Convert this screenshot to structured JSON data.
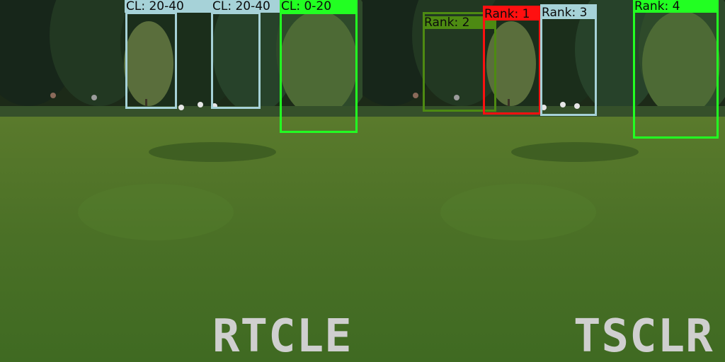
{
  "panels": [
    {
      "method_label": "RTCLE",
      "detections": [
        {
          "label": "CL: 20-40",
          "color": "#a6d2d8"
        },
        {
          "label": "CL: 20-40",
          "color": "#a6d2d8"
        },
        {
          "label": "CL: 0-20",
          "color": "#22ff22"
        }
      ]
    },
    {
      "method_label": "TSCLR",
      "detections": [
        {
          "label": "Rank: 2",
          "color": "#4d8a12"
        },
        {
          "label": "Rank: 1",
          "color": "#ff1010"
        },
        {
          "label": "Rank: 3",
          "color": "#a6d2d8"
        },
        {
          "label": "Rank: 4",
          "color": "#22ff22"
        }
      ]
    }
  ]
}
